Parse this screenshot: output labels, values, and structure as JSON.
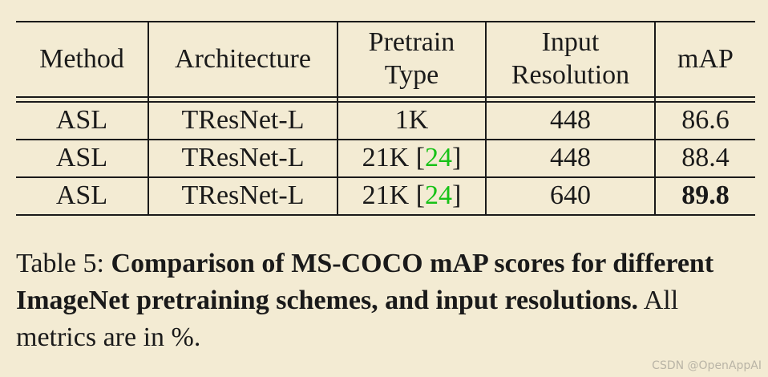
{
  "table": {
    "headers": {
      "method": "Method",
      "architecture": "Architecture",
      "pretrain_line1": "Pretrain",
      "pretrain_line2": "Type",
      "input_line1": "Input",
      "input_line2": "Resolution",
      "map": "mAP"
    },
    "rows": [
      {
        "method": "ASL",
        "architecture": "TResNet-L",
        "pretrain": "1K",
        "ref": "",
        "ref_open": "",
        "ref_close": "",
        "resolution": "448",
        "map": "86.6"
      },
      {
        "method": "ASL",
        "architecture": "TResNet-L",
        "pretrain": "21K",
        "ref_open": " [",
        "ref": "24",
        "ref_close": "]",
        "resolution": "448",
        "map": "88.4"
      },
      {
        "method": "ASL",
        "architecture": "TResNet-L",
        "pretrain": "21K",
        "ref_open": " [",
        "ref": "24",
        "ref_close": "]",
        "resolution": "640",
        "map": "89.8"
      }
    ]
  },
  "caption": {
    "label": "Table 5:",
    "bold_text": "Comparison of MS-COCO mAP scores for different ImageNet pretraining schemes, and input resolutions.",
    "normal_text": "All metrics are in %."
  },
  "watermark": "CSDN @OpenAppAI",
  "colors": {
    "background": "#f3ebd3",
    "reference_link": "#17c217"
  }
}
